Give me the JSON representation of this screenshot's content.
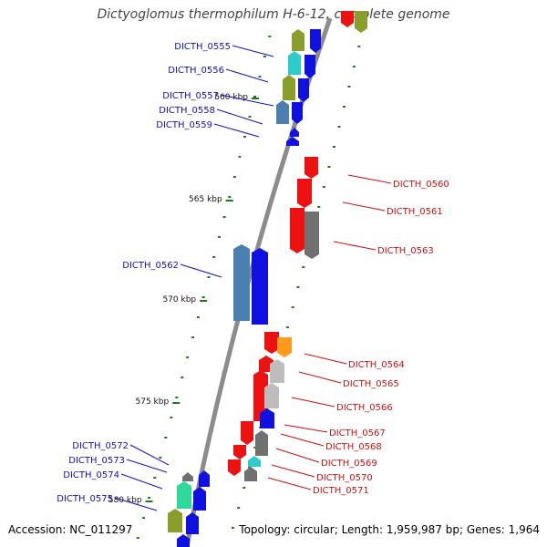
{
  "title": "Dictyoglomus thermophilum H-6-12, complete genome",
  "footer": {
    "accession_label": "Accession:",
    "accession": "NC_011297",
    "topology_label": "Topology:",
    "topology": "circular",
    "length_label": "Length:",
    "length": "1,959,987 bp",
    "genes_label": "Genes:",
    "genes": "1,964"
  },
  "colors": {
    "backbone": "#8c8c8c",
    "tick": "#1f7a1f",
    "left_label": "#1010c0",
    "right_label": "#cc1010"
  },
  "scale_labels": [
    "560 kbp",
    "565 kbp",
    "570 kbp",
    "575 kbp",
    "580 kbp"
  ],
  "left_genes": [
    {
      "label": "DICTH_0555",
      "color": "#8a9e2c"
    },
    {
      "label": "DICTH_0556",
      "color": "#2ecbcb"
    },
    {
      "label": "DICTH_0557",
      "color": "#8a9e2c"
    },
    {
      "label": "DICTH_0558",
      "color": "#4a7fb0"
    },
    {
      "label": "DICTH_0559",
      "color": "#1010e0"
    },
    {
      "label": "DICTH_0562",
      "color": "#4a7fb0"
    },
    {
      "label": "DICTH_0572",
      "color": "#707070"
    },
    {
      "label": "DICTH_0573",
      "color": "#1010e0"
    },
    {
      "label": "DICTH_0574",
      "color": "#2fd99a"
    },
    {
      "label": "DICTH_0575",
      "color": "#8a9e2c"
    }
  ],
  "right_genes": [
    {
      "label": "DICTH_0560",
      "color": "#ee1111"
    },
    {
      "label": "DICTH_0561",
      "color": "#ee1111"
    },
    {
      "label": "DICTH_0563",
      "color": "#707070"
    },
    {
      "label": "DICTH_0564",
      "color": "#ff9a1a"
    },
    {
      "label": "DICTH_0565",
      "color": "#bdbdbd"
    },
    {
      "label": "DICTH_0566",
      "color": "#bdbdbd"
    },
    {
      "label": "DICTH_0567",
      "color": "#1010e0"
    },
    {
      "label": "DICTH_0568",
      "color": "#707070"
    },
    {
      "label": "DICTH_0569",
      "color": "#ee1111"
    },
    {
      "label": "DICTH_0570",
      "color": "#2ecbcb"
    },
    {
      "label": "DICTH_0571",
      "color": "#707070"
    }
  ]
}
